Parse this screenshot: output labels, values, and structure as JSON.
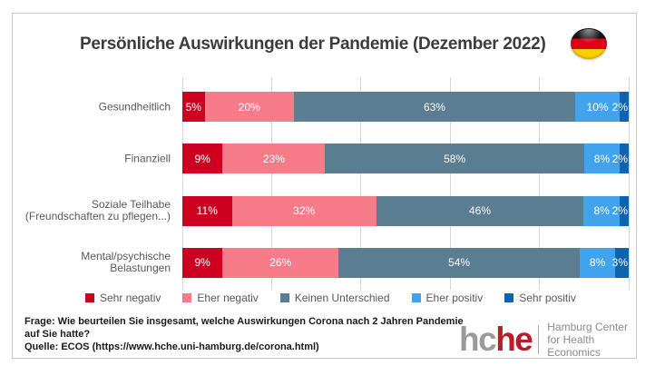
{
  "header": {
    "title": "Persönliche Auswirkungen der Pandemie (Dezember 2022)",
    "flag_icon": "german-flag-icon"
  },
  "chart_data": {
    "type": "bar",
    "subtype": "horizontal-stacked-100",
    "title": "Persönliche Auswirkungen der Pandemie (Dezember 2022)",
    "categories": [
      [
        "Gesundheitlich"
      ],
      [
        "Finanziell"
      ],
      [
        "Soziale Teilhabe",
        "(Freundschaften zu pflegen...)"
      ],
      [
        "Mental/psychische",
        "Belastungen"
      ]
    ],
    "series": [
      {
        "name": "Sehr negativ",
        "color": "#ce0021",
        "values": [
          5,
          9,
          11,
          9
        ]
      },
      {
        "name": "Eher negativ",
        "color": "#f87b8a",
        "values": [
          20,
          23,
          32,
          26
        ]
      },
      {
        "name": "Keinen Unterschied",
        "color": "#5a7d91",
        "values": [
          63,
          58,
          46,
          54
        ]
      },
      {
        "name": "Eher positiv",
        "color": "#41a2ee",
        "values": [
          10,
          8,
          8,
          8
        ]
      },
      {
        "name": "Sehr positiv",
        "color": "#1063ae",
        "values": [
          2,
          2,
          2,
          3
        ]
      }
    ],
    "value_format": "percent",
    "xlim": [
      0,
      100
    ],
    "gridlines_percent": [
      0,
      20,
      40,
      60,
      80,
      100
    ],
    "gridline_color": "#d6d6d6",
    "legend_position": "bottom",
    "bar_label_color": "#ffffff"
  },
  "footer": {
    "frage_line1": "Frage: Wie beurteilen Sie insgesamt, welche Auswirkungen Corona nach 2 Jahren Pandemie",
    "frage_line2": "auf Sie hatte?",
    "quelle": "Quelle: ECOS (https://www.hche.uni-hamburg.de/corona.html)"
  },
  "logo": {
    "wordmark_gray": "hc",
    "wordmark_red": "he",
    "gray": "#9a9a9a",
    "red": "#be1a2c",
    "tagline_line1": "Hamburg Center",
    "tagline_line2": "for Health Economics"
  }
}
